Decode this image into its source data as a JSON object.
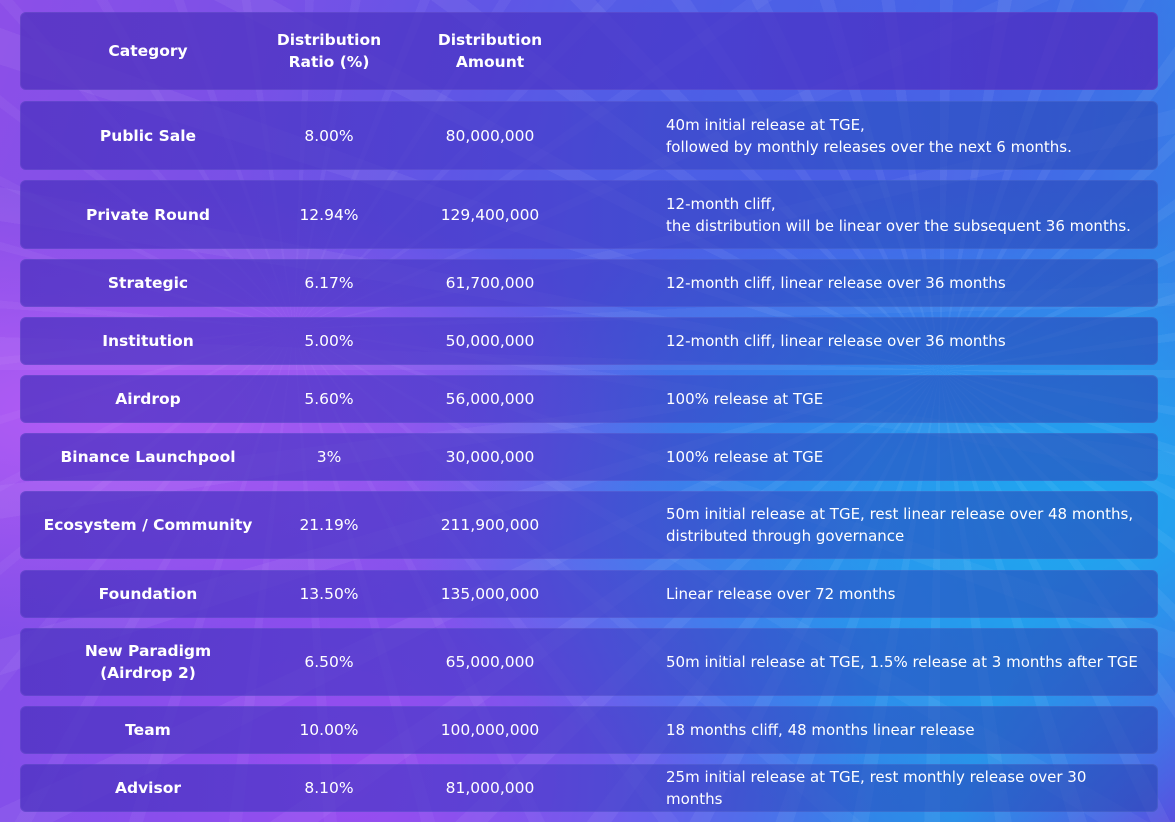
{
  "table": {
    "headers": {
      "category": "Category",
      "ratio": "Distribution\nRatio (%)",
      "amount": "Distribution\nAmount",
      "description": ""
    },
    "rows": [
      {
        "category": "Public Sale",
        "ratio": "8.00%",
        "amount": "80,000,000",
        "description": "40m initial release at TGE,\nfollowed by monthly releases over the next 6 months."
      },
      {
        "category": "Private Round",
        "ratio": "12.94%",
        "amount": "129,400,000",
        "description": "12-month cliff,\nthe distribution will be linear over the subsequent 36 months."
      },
      {
        "category": "Strategic",
        "ratio": "6.17%",
        "amount": "61,700,000",
        "description": "12-month cliff, linear release over 36 months"
      },
      {
        "category": "Institution",
        "ratio": "5.00%",
        "amount": "50,000,000",
        "description": "12-month cliff, linear release over 36 months"
      },
      {
        "category": "Airdrop",
        "ratio": "5.60%",
        "amount": "56,000,000",
        "description": "100% release at TGE"
      },
      {
        "category": "Binance Launchpool",
        "ratio": "3%",
        "amount": "30,000,000",
        "description": "100% release at TGE"
      },
      {
        "category": "Ecosystem / Community",
        "ratio": "21.19%",
        "amount": "211,900,000",
        "description": "50m initial release at TGE, rest linear release over 48 months,\ndistributed through governance"
      },
      {
        "category": "Foundation",
        "ratio": "13.50%",
        "amount": "135,000,000",
        "description": "Linear release over 72 months"
      },
      {
        "category": "New Paradigm\n(Airdrop 2)",
        "ratio": "6.50%",
        "amount": "65,000,000",
        "description": "50m initial release at TGE, 1.5% release at 3 months after TGE"
      },
      {
        "category": "Team",
        "ratio": "10.00%",
        "amount": "100,000,000",
        "description": "18 months cliff, 48 months linear release"
      },
      {
        "category": "Advisor",
        "ratio": "8.10%",
        "amount": "81,000,000",
        "description": "25m initial release at TGE, rest monthly release over 30 months"
      }
    ]
  }
}
